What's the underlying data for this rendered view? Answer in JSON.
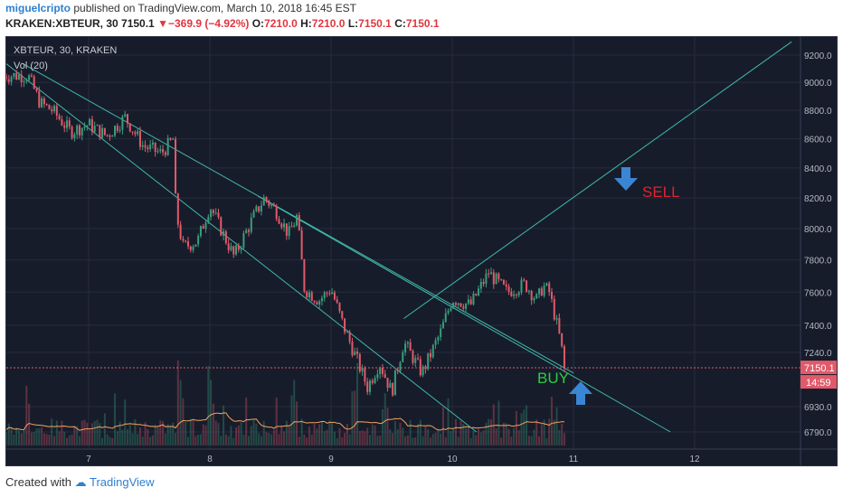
{
  "header": {
    "user": "miguelcripto",
    "published": "published on TradingView.com, March 10, 2018 16:45 EST",
    "symbol": "KRAKEN:XBTEUR, 30",
    "last": "7150.1",
    "change": "−369.9 (−4.92%)",
    "o_label": "O:",
    "o_val": "7210.0",
    "h_label": "H:",
    "h_val": "7210.0",
    "l_label": "L:",
    "l_val": "7150.1",
    "c_label": "C:",
    "c_val": "7150.1"
  },
  "chart_header": {
    "symbol_line": "XBTEUR, 30, KRAKEN",
    "vol_label": "Vol (20)"
  },
  "price_badge": "7150.1",
  "time_badge": "14:59",
  "annotations": {
    "sell": "SELL",
    "buy": "BUY"
  },
  "footer": {
    "created_with": "Created with",
    "brand": "TradingView"
  },
  "colors": {
    "background": "#171c2b",
    "up": "#3a9d7a",
    "down": "#e05a6a",
    "trendline": "#3fb9a8",
    "arrow": "#3a86d4",
    "sell_text": "#e0222c",
    "buy_text": "#2ecc40",
    "volume_ma": "#f5a25d"
  },
  "chart_data": {
    "type": "candlestick",
    "x_ticks": [
      "7",
      "8",
      "9",
      "10",
      "11",
      "12"
    ],
    "y_ticks": [
      "9200.0",
      "9000.0",
      "8800.0",
      "8600.0",
      "8400.0",
      "8200.0",
      "8000.0",
      "7800.0",
      "7600.0",
      "7400.0",
      "7240.0",
      "6930.0",
      "6790.0"
    ],
    "y_tick_values": [
      9200,
      9000,
      8800,
      8600,
      8400,
      8200,
      8000,
      7800,
      7600,
      7400,
      7240,
      6930,
      6790
    ],
    "y_scale": "log",
    "close_path": [
      [
        6.5,
        9050
      ],
      [
        6.6,
        8850
      ],
      [
        6.7,
        8800
      ],
      [
        6.85,
        8650
      ],
      [
        7.0,
        8700
      ],
      [
        7.15,
        8620
      ],
      [
        7.3,
        8750
      ],
      [
        7.45,
        8550
      ],
      [
        7.6,
        8500
      ],
      [
        7.7,
        8600
      ],
      [
        7.72,
        8100
      ],
      [
        7.78,
        7880
      ],
      [
        7.9,
        7920
      ],
      [
        8.0,
        8150
      ],
      [
        8.1,
        7980
      ],
      [
        8.2,
        7820
      ],
      [
        8.35,
        8060
      ],
      [
        8.45,
        8200
      ],
      [
        8.55,
        8110
      ],
      [
        8.65,
        7960
      ],
      [
        8.72,
        8080
      ],
      [
        8.78,
        7620
      ],
      [
        8.9,
        7550
      ],
      [
        9.0,
        7620
      ],
      [
        9.1,
        7400
      ],
      [
        9.2,
        7220
      ],
      [
        9.3,
        7040
      ],
      [
        9.4,
        7180
      ],
      [
        9.5,
        7010
      ],
      [
        9.6,
        7300
      ],
      [
        9.75,
        7120
      ],
      [
        9.9,
        7350
      ],
      [
        10.0,
        7560
      ],
      [
        10.15,
        7520
      ],
      [
        10.3,
        7720
      ],
      [
        10.45,
        7600
      ],
      [
        10.6,
        7650
      ],
      [
        10.7,
        7550
      ],
      [
        10.75,
        7640
      ],
      [
        10.8,
        7600
      ],
      [
        10.88,
        7350
      ],
      [
        10.93,
        7150.1
      ]
    ],
    "volume_peaks": [
      [
        7.75,
        320
      ],
      [
        8.0,
        240
      ],
      [
        8.7,
        150
      ],
      [
        9.2,
        250
      ],
      [
        9.45,
        130
      ],
      [
        10.6,
        90
      ],
      [
        10.85,
        100
      ]
    ],
    "trendlines": [
      {
        "name": "channel-upper",
        "from": [
          6.45,
          9140
        ],
        "to": [
          11.0,
          7120
        ]
      },
      {
        "name": "channel-lower",
        "from": [
          6.3,
          9150
        ],
        "to": [
          10.2,
          6790
        ]
      },
      {
        "name": "support-line",
        "from": [
          8.4,
          8210
        ],
        "to": [
          11.8,
          6790
        ]
      },
      {
        "name": "rising-line",
        "from": [
          9.6,
          7440
        ],
        "to": [
          12.8,
          9300
        ]
      }
    ],
    "last_price": 7150.1
  }
}
